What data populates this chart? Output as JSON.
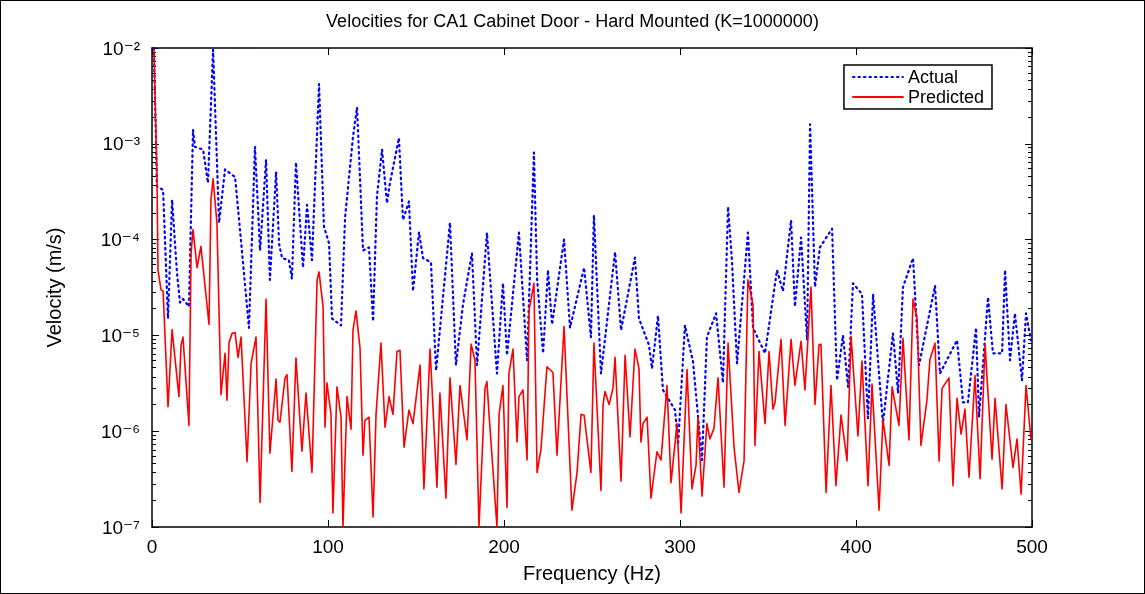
{
  "chart_data": {
    "type": "line",
    "title": "Velocities for CA1 Cabinet Door - Hard Mounted (K=1000000)",
    "xlabel": "Frequency (Hz)",
    "ylabel": "Velocity (m/s)",
    "log": "y",
    "legend": "top right",
    "marker": "none",
    "xlim": [
      0,
      500
    ],
    "xticks": [
      0,
      100,
      200,
      300,
      400,
      500
    ],
    "ylim": [
      1e-07,
      0.01
    ],
    "yticks": [
      {
        "value": 1e-07,
        "label": "10⁻⁷"
      },
      {
        "value": 1e-06,
        "label": "10⁻⁶"
      },
      {
        "value": 1e-05,
        "label": "10⁻⁵"
      },
      {
        "value": 0.0001,
        "label": "10⁻⁴"
      },
      {
        "value": 0.001,
        "label": "10⁻³"
      },
      {
        "value": 0.01,
        "label": "10⁻²"
      }
    ],
    "series": [
      {
        "name": "Actual",
        "color": "#0000ff",
        "line_style": "dotted",
        "x": [
          1.1,
          2.8,
          6.3,
          9.1,
          11.4,
          14.2,
          15.9,
          17.6,
          21,
          23.3,
          24.4,
          29,
          31.8,
          34.7,
          38.1,
          41.5,
          47.2,
          48.9,
          55.1,
          58.5,
          61.4,
          64.8,
          67,
          70.5,
          72.2,
          73.9,
          77.8,
          79.5,
          81.8,
          85.8,
          88.1,
          90.9,
          94.9,
          97.7,
          100.6,
          102.3,
          107.4,
          109.7,
          114.2,
          116.5,
          119.9,
          123.3,
          125.6,
          127.8,
          130.7,
          133.5,
          135.2,
          140.3,
          142.6,
          146,
          148.3,
          151.7,
          154,
          158.5,
          161.4,
          169.3,
          172.7,
          176.7,
          181.8,
          184.7,
          190.3,
          196,
          199.4,
          201.7,
          208.5,
          213.1,
          217,
          218.8,
          222.2,
          225,
          227.3,
          234.1,
          237.5,
          245.5,
          249.4,
          251.1,
          255.1,
          263.1,
          266.5,
          274.4,
          276.7,
          282.4,
          284.1,
          287.5,
          290.3,
          297.2,
          298.9,
          302.8,
          307.4,
          312.5,
          315.3,
          320.5,
          324.4,
          327.3,
          329.5,
          332.4,
          338.6,
          341.5,
          348.3,
          355.1,
          358.5,
          363.1,
          365.3,
          368.8,
          372.2,
          373.9,
          376.7,
          379.5,
          386.4,
          389.2,
          392.6,
          395.5,
          398.3,
          403.4,
          406.8,
          409.7,
          412.5,
          415.3,
          421,
          423.9,
          426.7,
          432.4,
          435.8,
          444.9,
          447.7,
          457.4,
          460.8,
          463.6,
          468.2,
          469.9,
          475,
          477.8,
          483,
          484.7,
          487.5,
          490.3,
          494.3,
          496.6,
          499.4
        ],
        "values": [
          0.01,
          0.00036,
          0.00033,
          1.5e-05,
          0.00026,
          4.5e-05,
          2.2e-05,
          2.4e-05,
          2e-05,
          0.0014,
          0.00093,
          0.00087,
          0.00039,
          0.0096,
          0.00015,
          0.00054,
          0.00045,
          0.00021,
          1.2e-05,
          0.00093,
          7.7e-05,
          0.00068,
          3.8e-05,
          0.00051,
          9.1e-05,
          6.4e-05,
          6.1e-05,
          3.9e-05,
          0.00064,
          5.1e-05,
          0.00023,
          6.1e-05,
          0.0042,
          0.000137,
          9.1e-05,
          1.5e-05,
          1.27e-05,
          0.00017,
          0.00118,
          0.0024,
          7.7e-05,
          8.3e-05,
          1.4e-05,
          0.00028,
          0.00087,
          0.00024,
          0.00039,
          0.00115,
          0.00016,
          0.00025,
          2.9e-05,
          0.00012,
          6.4e-05,
          5.8e-05,
          4.3e-06,
          0.00015,
          4.9e-06,
          2.1e-05,
          7.2e-05,
          4.9e-06,
          0.000118,
          4e-06,
          3.5e-05,
          6.2e-06,
          0.000118,
          5.5e-06,
          0.00081,
          3.9e-05,
          6.5e-06,
          4.8e-05,
          1.3e-05,
          0.0001,
          1.2e-05,
          5.1e-05,
          9.6e-06,
          0.00018,
          4e-06,
          7.4e-05,
          1.13e-05,
          6.5e-05,
          1.5e-05,
          7.9e-06,
          4.5e-06,
          1.6e-05,
          2.7e-06,
          1.66e-06,
          7.2e-07,
          1.27e-05,
          5.3e-06,
          5e-07,
          9.6e-06,
          1.7e-05,
          3.2e-06,
          0.00022,
          6.1e-05,
          5.1e-06,
          0.000118,
          1.2e-05,
          6.5e-06,
          4.8e-05,
          2.9e-05,
          0.00016,
          2e-05,
          0.000105,
          8.9e-06,
          0.0016,
          3.2e-05,
          8.3e-05,
          0.00013,
          3.4e-06,
          1e-05,
          2.9e-06,
          3.5e-05,
          2.7e-05,
          1.37e-06,
          2.7e-05,
          5.5e-06,
          1.2e-06,
          1.05e-05,
          2.5e-06,
          3.2e-05,
          6.4e-05,
          4.9e-06,
          3.3e-05,
          4e-06,
          8.9e-06,
          2e-06,
          2e-06,
          1.2e-05,
          1.4e-06,
          2.5e-05,
          6.5e-06,
          6.5e-06,
          4.8e-05,
          5.5e-06,
          1.7e-05,
          3.4e-06,
          1.7e-05,
          8.9e-06
        ]
      },
      {
        "name": "Predicted",
        "color": "#ff0000",
        "line_style": "solid",
        "x": [
          1.1,
          2.8,
          3.4,
          5.1,
          6.3,
          9.1,
          11.4,
          15.3,
          16.5,
          17.6,
          21,
          22.2,
          23.3,
          25.6,
          27.8,
          32.4,
          33.5,
          34.7,
          36.9,
          39.2,
          41.5,
          42.6,
          43.8,
          45.5,
          47.2,
          48.9,
          50.6,
          54,
          56.3,
          59.1,
          61.4,
          64.8,
          67,
          70.5,
          71.6,
          72.7,
          75.6,
          76.7,
          79.5,
          81.8,
          85.2,
          87.5,
          90.9,
          93.8,
          94.9,
          97.2,
          98.3,
          99.4,
          101.7,
          102.8,
          105.1,
          107.4,
          108.5,
          110.8,
          113.1,
          114.2,
          115.9,
          118.2,
          119.9,
          121,
          123.3,
          125.6,
          127.3,
          130.1,
          132.4,
          134.7,
          136.9,
          139.2,
          140.9,
          143.2,
          146,
          148.3,
          152.3,
          154.5,
          158,
          161.9,
          163.6,
          167,
          169.3,
          172.7,
          175,
          179,
          181.3,
          183.5,
          185.8,
          189.2,
          190.3,
          191.5,
          196,
          197.2,
          199.4,
          201.7,
          202.8,
          205.1,
          207.4,
          208.5,
          210.8,
          213.1,
          214.2,
          217,
          218.8,
          221,
          224.4,
          227.8,
          230.1,
          234.1,
          238.6,
          241.5,
          243.8,
          245.5,
          249.4,
          251.1,
          255.1,
          256.3,
          257.4,
          259.7,
          261.9,
          263.1,
          266.5,
          268.8,
          271.6,
          274.4,
          276.7,
          277.8,
          279,
          281.3,
          283.5,
          286.9,
          289.2,
          292.6,
          294.9,
          298.3,
          300.6,
          304,
          306.8,
          309.1,
          310.2,
          312.5,
          315.3,
          317,
          319.3,
          321.6,
          325,
          327.3,
          330.7,
          333.5,
          336.4,
          338.6,
          341.5,
          342.6,
          344.9,
          348.3,
          350.6,
          352.8,
          354,
          357.4,
          359.7,
          363.1,
          365.3,
          368.8,
          371,
          374.4,
          376.7,
          379,
          380.1,
          383,
          385.8,
          388.6,
          391.5,
          394.9,
          397.2,
          401.1,
          403.4,
          406.8,
          409.1,
          413.1,
          415.3,
          418.8,
          420.5,
          424.4,
          426.7,
          430.1,
          432.4,
          434.7,
          436.9,
          440.3,
          442,
          444.9,
          447.2,
          448.9,
          452.8,
          455.1,
          457.4,
          459.7,
          461.9,
          464.2,
          467.6,
          470.5,
          473.3,
          477.3,
          479,
          483,
          485.2,
          489.2,
          491.5,
          493.8,
          496.6,
          499.4
        ],
        "values": [
          0.0096,
          0.0005,
          4.8e-05,
          3e-05,
          2.9e-05,
          1.8e-06,
          1.15e-05,
          2.3e-06,
          7.9e-06,
          9.6e-06,
          1.15e-06,
          7.2e-05,
          0.000127,
          5.1e-05,
          8.5e-05,
          1.3e-05,
          0.00026,
          0.00043,
          0.00015,
          2.4e-06,
          6.5e-06,
          2.1e-06,
          8.5e-06,
          1.05e-05,
          1.07e-05,
          5.9e-06,
          9.6e-06,
          4.8e-07,
          5.1e-06,
          9.6e-06,
          1.8e-07,
          2.4e-05,
          5.9e-07,
          3.5e-06,
          1.3e-06,
          1.24e-06,
          3.6e-06,
          3.9e-06,
          3.8e-07,
          5.8e-06,
          6.2e-07,
          2.5e-06,
          3.7e-07,
          3.8e-05,
          4.6e-05,
          2e-05,
          1.1e-06,
          3.2e-06,
          1.5e-06,
          1.4e-07,
          2.9e-06,
          1.4e-06,
          1e-07,
          2.3e-06,
          1.05e-06,
          1.13e-05,
          1.8e-05,
          7.4e-06,
          5.6e-07,
          1.3e-06,
          1.4e-06,
          1.27e-07,
          1.5e-06,
          8.3e-06,
          1.1e-06,
          2.3e-06,
          1.5e-06,
          6.8e-06,
          7e-06,
          6.8e-07,
          1.66e-06,
          1.2e-06,
          4.9e-06,
          2.5e-07,
          7.2e-06,
          2.6e-07,
          2.5e-06,
          2e-07,
          3.6e-06,
          4.5e-07,
          3e-06,
          8.1e-07,
          8.1e-06,
          5.5e-06,
          1e-07,
          2.8e-06,
          3.3e-06,
          1.5e-06,
          1e-07,
          1.5e-06,
          3e-06,
          1.6e-07,
          4e-06,
          7.2e-06,
          7.7e-07,
          2.3e-06,
          2.7e-06,
          5e-07,
          1.8e-05,
          3.5e-05,
          3.7e-07,
          6.5e-07,
          4.7e-06,
          4.1e-06,
          5.6e-07,
          1.24e-05,
          1.5e-07,
          3.7e-07,
          1.5e-06,
          1.47e-06,
          3.7e-07,
          8.3e-06,
          2.4e-07,
          1.9e-06,
          2.6e-06,
          1.9e-06,
          2.8e-06,
          5.9e-06,
          3e-07,
          6.2e-06,
          8.7e-07,
          7.2e-06,
          4.5e-06,
          7.7e-07,
          1.2e-06,
          1.4e-06,
          2e-07,
          6.1e-07,
          5e-07,
          3e-06,
          2.9e-07,
          1.2e-06,
          1.4e-07,
          4.4e-06,
          2.5e-07,
          4.4e-07,
          1.4e-06,
          2.1e-07,
          1.2e-06,
          8.3e-07,
          1.07e-06,
          3.6e-06,
          2.6e-07,
          8.3e-06,
          6.8e-07,
          2.3e-07,
          4.9e-07,
          3.8e-05,
          2.1e-05,
          7.1e-07,
          6.8e-06,
          1.2e-06,
          6.8e-06,
          1.7e-06,
          2e-06,
          9.1e-06,
          1.15e-06,
          9.1e-06,
          3e-06,
          8.7e-06,
          2.7e-06,
          3.2e-05,
          1.9e-06,
          8e-06,
          8.1e-06,
          2.3e-07,
          3e-06,
          2.7e-07,
          1.47e-06,
          4.9e-07,
          9.8e-06,
          8.9e-07,
          5.4e-06,
          2.7e-07,
          3.1e-06,
          1.5e-07,
          1.33e-06,
          4.4e-07,
          2.9e-06,
          1.15e-06,
          9.3e-06,
          8.1e-07,
          2.4e-05,
          1.5e-05,
          7.1e-07,
          2.1e-06,
          5.6e-06,
          8.3e-06,
          4.9e-07,
          2.8e-06,
          3.6e-06,
          2.7e-07,
          2.2e-06,
          9.3e-07,
          1.7e-06,
          3.3e-07,
          3.8e-06,
          3.2e-07,
          8.1e-06,
          5.1e-07,
          2.2e-06,
          2.5e-07,
          1.9e-06,
          4.2e-07,
          8.3e-07,
          2.2e-07,
          3e-06,
          8.3e-07
        ]
      }
    ]
  }
}
